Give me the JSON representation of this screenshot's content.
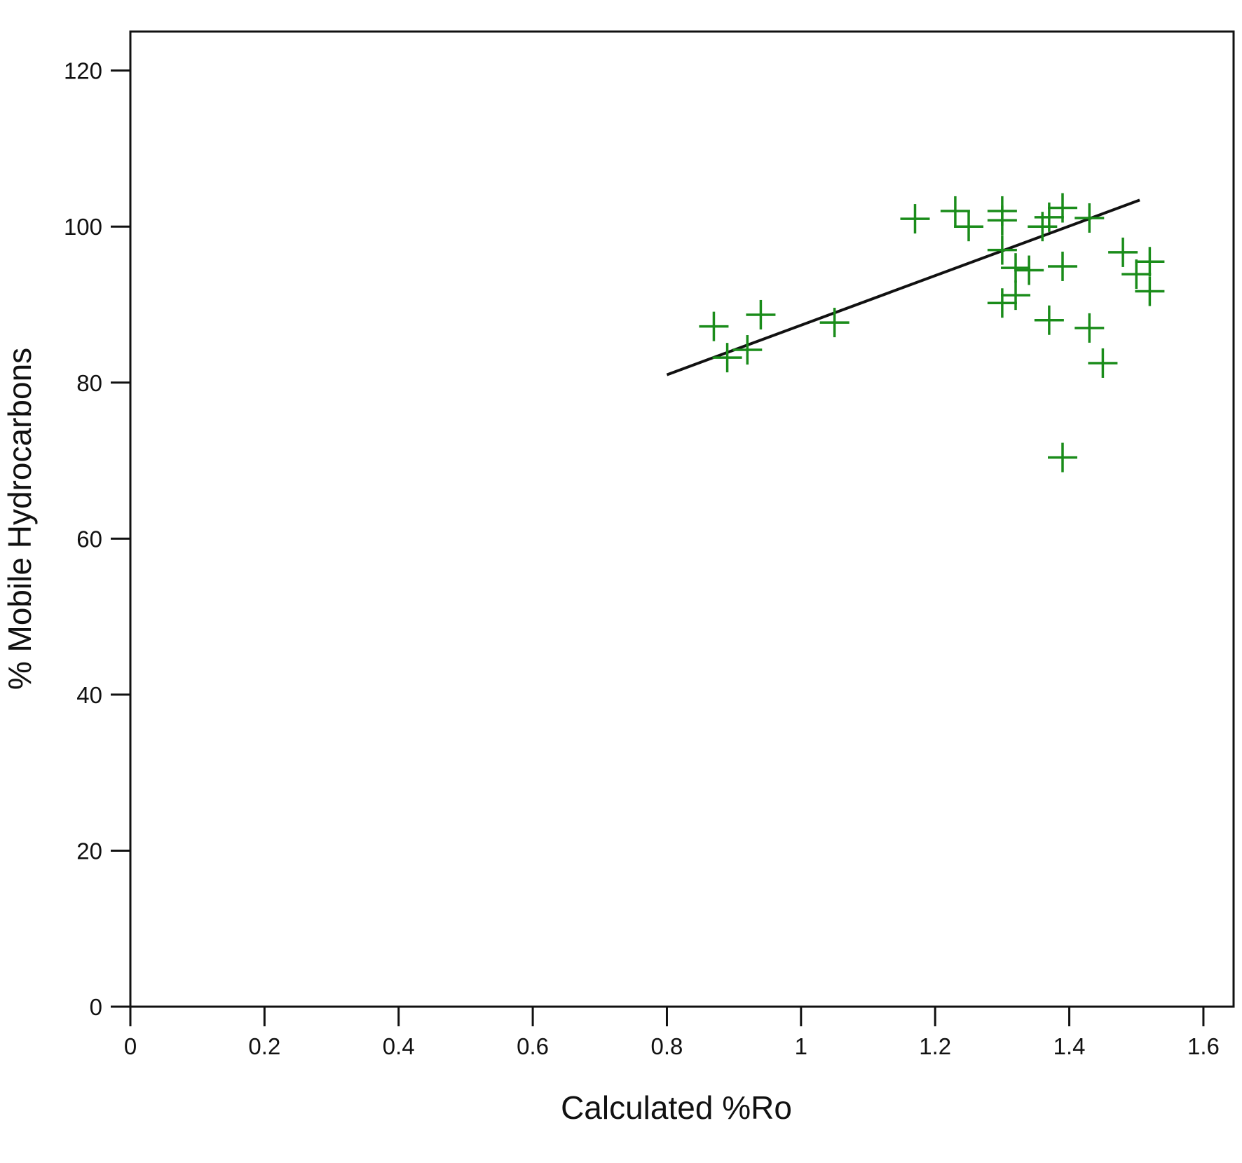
{
  "chart_data": {
    "type": "scatter",
    "title": "",
    "xlabel": "Calculated %Ro",
    "ylabel": "% Mobile Hydrocarbons",
    "xlim": [
      0,
      1.645
    ],
    "ylim": [
      0,
      125
    ],
    "x_ticks": [
      0,
      0.2,
      0.4,
      0.6,
      0.8,
      1,
      1.2,
      1.4,
      1.6
    ],
    "x_tick_labels": [
      "0",
      "0.2",
      "0.4",
      "0.6",
      "0.8",
      "1",
      "1.2",
      "1.4",
      "1.6"
    ],
    "y_ticks": [
      0,
      20,
      40,
      60,
      80,
      100,
      120
    ],
    "y_tick_labels": [
      "0",
      "20",
      "40",
      "60",
      "80",
      "100",
      "120"
    ],
    "grid": false,
    "legend": false,
    "marker": "plus",
    "marker_color": "#1a8c1a",
    "line_color": "#111111",
    "points": [
      {
        "x": 0.87,
        "y": 87.2
      },
      {
        "x": 0.89,
        "y": 83.2
      },
      {
        "x": 0.92,
        "y": 84.2
      },
      {
        "x": 0.94,
        "y": 88.7
      },
      {
        "x": 1.05,
        "y": 87.7
      },
      {
        "x": 1.17,
        "y": 101.0
      },
      {
        "x": 1.23,
        "y": 102.0
      },
      {
        "x": 1.25,
        "y": 100.0
      },
      {
        "x": 1.3,
        "y": 102.0
      },
      {
        "x": 1.3,
        "y": 100.8
      },
      {
        "x": 1.3,
        "y": 97.0
      },
      {
        "x": 1.3,
        "y": 90.2
      },
      {
        "x": 1.32,
        "y": 94.7
      },
      {
        "x": 1.32,
        "y": 91.2
      },
      {
        "x": 1.34,
        "y": 94.4
      },
      {
        "x": 1.36,
        "y": 100.0
      },
      {
        "x": 1.37,
        "y": 101.2
      },
      {
        "x": 1.39,
        "y": 102.4
      },
      {
        "x": 1.39,
        "y": 94.9
      },
      {
        "x": 1.37,
        "y": 88.0
      },
      {
        "x": 1.39,
        "y": 70.4
      },
      {
        "x": 1.43,
        "y": 101.1
      },
      {
        "x": 1.43,
        "y": 87.0
      },
      {
        "x": 1.45,
        "y": 82.5
      },
      {
        "x": 1.48,
        "y": 96.7
      },
      {
        "x": 1.5,
        "y": 93.9
      },
      {
        "x": 1.52,
        "y": 95.5
      },
      {
        "x": 1.52,
        "y": 91.7
      }
    ],
    "fit_line": {
      "x": [
        0.8,
        1.505
      ],
      "y": [
        81.0,
        103.4
      ]
    }
  }
}
